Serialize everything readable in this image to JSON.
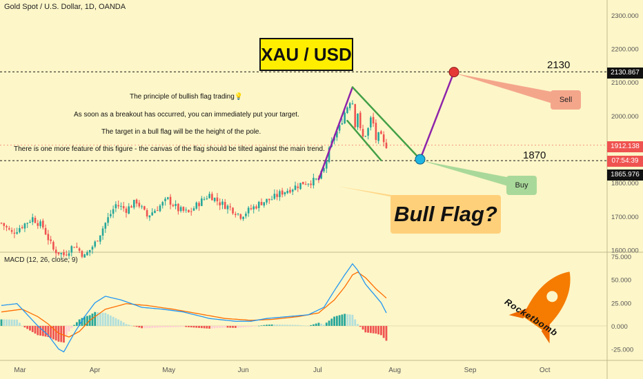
{
  "header": {
    "symbol": "Gold Spot / U.S. Dollar, 1D, OANDA"
  },
  "macd": {
    "title": "MACD (12, 26, close, 9)"
  },
  "annotations": {
    "title": "XAU / USD",
    "notes": [
      "The principle of bullish flag trading💡",
      "As soon as a breakout has occurred, you can immediately put your target.",
      "The target in a bull flag will be the height of the pole.",
      "There is one more feature of this figure - the canvas of the flag should be tilted against the main trend."
    ],
    "bull_flag": "Bull Flag?",
    "sell": "Sell",
    "buy": "Buy",
    "level_high": "2130",
    "level_low": "1870",
    "watermark": "Rocketbomb"
  },
  "price_tags": {
    "target": "2130.867",
    "current": "1912.138",
    "countdown": "07:54:39",
    "support": "1865.976"
  },
  "colors": {
    "up": "#26a69a",
    "down": "#ef5350",
    "pole": "#8e24aa",
    "flag": "#43a047",
    "macd_line": "#2196f3",
    "signal_line": "#ff6d00",
    "background": "#fdf6c8"
  },
  "chart_data": [
    {
      "type": "candlestick",
      "title": "Gold Spot / U.S. Dollar, 1D, OANDA",
      "x_labels": [
        "Mar",
        "Apr",
        "May",
        "Jun",
        "Jul",
        "Aug",
        "Sep",
        "Oct"
      ],
      "y_ticks": [
        "1600.000",
        "1700.000",
        "1800.000",
        "1900.000",
        "2000.000",
        "2100.000",
        "2200.000",
        "2300.000"
      ],
      "ylim": [
        1595,
        2345
      ],
      "close_path": [
        {
          "t": 0,
          "v": 1680
        },
        {
          "t": 4,
          "v": 1650
        },
        {
          "t": 8,
          "v": 1672
        },
        {
          "t": 12,
          "v": 1695
        },
        {
          "t": 16,
          "v": 1668
        },
        {
          "t": 20,
          "v": 1600
        },
        {
          "t": 24,
          "v": 1585
        },
        {
          "t": 28,
          "v": 1615
        },
        {
          "t": 32,
          "v": 1580
        },
        {
          "t": 36,
          "v": 1620
        },
        {
          "t": 40,
          "v": 1680
        },
        {
          "t": 44,
          "v": 1735
        },
        {
          "t": 48,
          "v": 1720
        },
        {
          "t": 52,
          "v": 1745
        },
        {
          "t": 56,
          "v": 1700
        },
        {
          "t": 60,
          "v": 1725
        },
        {
          "t": 64,
          "v": 1750
        },
        {
          "t": 68,
          "v": 1720
        },
        {
          "t": 72,
          "v": 1710
        },
        {
          "t": 76,
          "v": 1740
        },
        {
          "t": 80,
          "v": 1765
        },
        {
          "t": 84,
          "v": 1740
        },
        {
          "t": 88,
          "v": 1725
        },
        {
          "t": 92,
          "v": 1702
        },
        {
          "t": 96,
          "v": 1722
        },
        {
          "t": 100,
          "v": 1742
        },
        {
          "t": 104,
          "v": 1752
        },
        {
          "t": 108,
          "v": 1772
        },
        {
          "t": 112,
          "v": 1785
        },
        {
          "t": 116,
          "v": 1800
        },
        {
          "t": 120,
          "v": 1805
        },
        {
          "t": 122,
          "v": 1810
        },
        {
          "t": 124,
          "v": 1840
        },
        {
          "t": 126,
          "v": 1895
        },
        {
          "t": 128,
          "v": 1940
        },
        {
          "t": 130,
          "v": 1965
        },
        {
          "t": 132,
          "v": 2010
        },
        {
          "t": 134,
          "v": 2045
        },
        {
          "t": 135,
          "v": 2040
        },
        {
          "t": 136,
          "v": 1975
        },
        {
          "t": 137,
          "v": 2010
        },
        {
          "t": 138,
          "v": 1955
        },
        {
          "t": 139,
          "v": 1935
        },
        {
          "t": 140,
          "v": 1945
        },
        {
          "t": 141,
          "v": 1960
        },
        {
          "t": 142,
          "v": 1990
        },
        {
          "t": 143,
          "v": 1975
        },
        {
          "t": 144,
          "v": 1930
        },
        {
          "t": 145,
          "v": 1940
        },
        {
          "t": 146,
          "v": 1935
        },
        {
          "t": 147,
          "v": 1915
        },
        {
          "t": 148,
          "v": 1912
        }
      ],
      "pattern": {
        "pole": [
          {
            "t": 122,
            "v": 1810
          },
          {
            "t": 135,
            "v": 2085
          }
        ],
        "flag_upper": [
          {
            "t": 135,
            "v": 2085
          },
          {
            "t": 161,
            "v": 1870
          }
        ],
        "flag_lower": [
          {
            "t": 133,
            "v": 1985
          },
          {
            "t": 146,
            "v": 1867
          }
        ],
        "projection": [
          {
            "t": 161,
            "v": 1870
          },
          {
            "t": 174,
            "v": 2130
          }
        ],
        "levels": [
          2130.867,
          1865.976,
          1912.138
        ]
      }
    },
    {
      "type": "macd",
      "title": "MACD (12, 26, close, 9)",
      "y_ticks": [
        "75.000",
        "50.000",
        "25.000",
        "0.000",
        "-25.000"
      ],
      "ylim": [
        -35,
        78
      ],
      "macd_path": [
        {
          "t": 0,
          "v": 22
        },
        {
          "t": 6,
          "v": 24
        },
        {
          "t": 10,
          "v": 12
        },
        {
          "t": 14,
          "v": 0
        },
        {
          "t": 18,
          "v": -10
        },
        {
          "t": 22,
          "v": -25
        },
        {
          "t": 24,
          "v": -28
        },
        {
          "t": 28,
          "v": -8
        },
        {
          "t": 32,
          "v": 10
        },
        {
          "t": 36,
          "v": 25
        },
        {
          "t": 40,
          "v": 32
        },
        {
          "t": 46,
          "v": 28
        },
        {
          "t": 54,
          "v": 20
        },
        {
          "t": 62,
          "v": 18
        },
        {
          "t": 70,
          "v": 15
        },
        {
          "t": 80,
          "v": 8
        },
        {
          "t": 90,
          "v": 5
        },
        {
          "t": 96,
          "v": 5
        },
        {
          "t": 102,
          "v": 8
        },
        {
          "t": 110,
          "v": 10
        },
        {
          "t": 118,
          "v": 12
        },
        {
          "t": 124,
          "v": 20
        },
        {
          "t": 128,
          "v": 38
        },
        {
          "t": 132,
          "v": 55
        },
        {
          "t": 135,
          "v": 67
        },
        {
          "t": 137,
          "v": 60
        },
        {
          "t": 140,
          "v": 45
        },
        {
          "t": 143,
          "v": 35
        },
        {
          "t": 146,
          "v": 25
        },
        {
          "t": 148,
          "v": 14
        }
      ],
      "signal_path": [
        {
          "t": 0,
          "v": 15
        },
        {
          "t": 8,
          "v": 18
        },
        {
          "t": 14,
          "v": 10
        },
        {
          "t": 18,
          "v": 2
        },
        {
          "t": 22,
          "v": -8
        },
        {
          "t": 26,
          "v": -12
        },
        {
          "t": 30,
          "v": -6
        },
        {
          "t": 34,
          "v": 6
        },
        {
          "t": 40,
          "v": 18
        },
        {
          "t": 48,
          "v": 24
        },
        {
          "t": 56,
          "v": 22
        },
        {
          "t": 66,
          "v": 18
        },
        {
          "t": 76,
          "v": 13
        },
        {
          "t": 86,
          "v": 8
        },
        {
          "t": 96,
          "v": 6
        },
        {
          "t": 104,
          "v": 7
        },
        {
          "t": 114,
          "v": 10
        },
        {
          "t": 122,
          "v": 14
        },
        {
          "t": 128,
          "v": 28
        },
        {
          "t": 132,
          "v": 42
        },
        {
          "t": 135,
          "v": 55
        },
        {
          "t": 137,
          "v": 58
        },
        {
          "t": 140,
          "v": 52
        },
        {
          "t": 144,
          "v": 40
        },
        {
          "t": 148,
          "v": 30
        }
      ]
    }
  ]
}
